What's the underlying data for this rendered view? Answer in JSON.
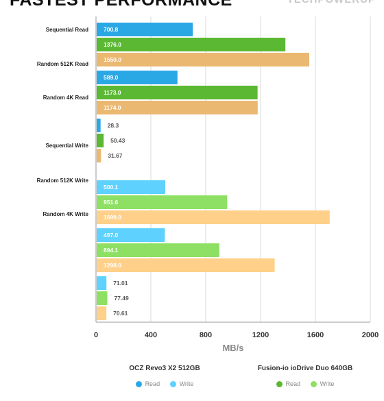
{
  "page": {
    "title": "FASTEST PERFORMANCE",
    "logo": "TECHPOWERUP"
  },
  "colors": {
    "ocz_read": "#2aa7e5",
    "ocz_write": "#5fd1ff",
    "fusion_read": "#5ab832",
    "fusion_write": "#8de063",
    "third_read": "#eab870",
    "third_write": "#ffd08a",
    "grid": "#d9d9d9"
  },
  "chart_data": {
    "type": "bar",
    "orientation": "horizontal",
    "xlabel": "MB/s",
    "xlim": [
      0,
      2000
    ],
    "xticks": [
      0,
      400,
      800,
      1200,
      1600,
      2000
    ],
    "grid": true,
    "category_labels": [
      "Sequential Read",
      "Random 512K Read",
      "Random 4K Read",
      "Sequential Write",
      "Random 512K Write",
      "Random 4K Write"
    ],
    "groups": [
      {
        "values": [
          700.8,
          1376.0,
          1550.0
        ],
        "labels": [
          "700.8",
          "1376.0",
          "1550.0"
        ]
      },
      {
        "values": [
          589.0,
          1173.0,
          1174.0
        ],
        "labels": [
          "589.0",
          "1173.0",
          "1174.0"
        ]
      },
      {
        "values": [
          28.3,
          50.43,
          31.67
        ],
        "labels": [
          "28.3",
          "50.43",
          "31.67"
        ]
      },
      {
        "values": [
          500.1,
          951.6,
          1699.0
        ],
        "labels": [
          "500.1",
          "951.6",
          "1699.0"
        ]
      },
      {
        "values": [
          497.0,
          894.1,
          1298.0
        ],
        "labels": [
          "497.0",
          "894.1",
          "1298.0"
        ]
      },
      {
        "values": [
          71.01,
          77.49,
          70.61
        ],
        "labels": [
          "71.01",
          "77.49",
          "70.61"
        ]
      }
    ],
    "legend": [
      {
        "name": "OCZ Revo3 X2 512GB",
        "items": [
          "Read",
          "Write"
        ]
      },
      {
        "name": "Fusion-io ioDrive Duo 640GB",
        "items": [
          "Read",
          "Write"
        ]
      }
    ]
  }
}
